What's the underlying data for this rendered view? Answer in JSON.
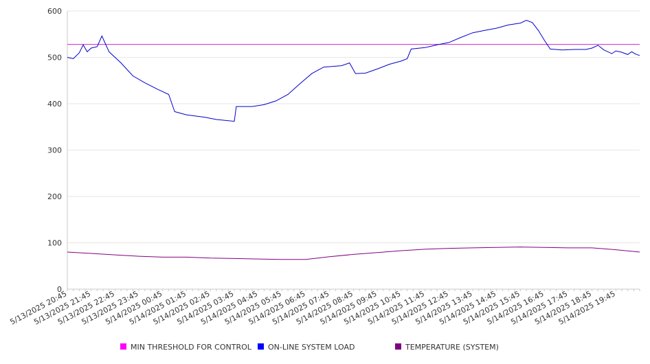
{
  "chart_data": {
    "type": "line",
    "title": "",
    "xlabel": "",
    "ylabel": "",
    "ylim": [
      0,
      600
    ],
    "yticks": [
      0,
      100,
      200,
      300,
      400,
      500,
      600
    ],
    "x_start": "5/13/2025 20:45",
    "x_end": "5/14/2025 20:45",
    "grid": "horizontal",
    "legend_position": "bottom",
    "x_tick_labels": [
      "5/13/2025 20:45",
      "5/13/2025 21:45",
      "5/13/2025 22:45",
      "5/13/2025 23:45",
      "5/14/2025 00:45",
      "5/14/2025 01:45",
      "5/14/2025 02:45",
      "5/14/2025 03:45",
      "5/14/2025 04:45",
      "5/14/2025 05:45",
      "5/14/2025 06:45",
      "5/14/2025 07:45",
      "5/14/2025 08:45",
      "5/14/2025 09:45",
      "5/14/2025 10:45",
      "5/14/2025 11:45",
      "5/14/2025 12:45",
      "5/14/2025 13:45",
      "5/14/2025 14:45",
      "5/14/2025 15:45",
      "5/14/2025 16:45",
      "5/14/2025 17:45",
      "5/14/2025 18:45",
      "5/14/2025 19:45"
    ],
    "series": [
      {
        "name": "MIN THRESHOLD FOR CONTROL",
        "color": "#cc22cc",
        "points": [
          [
            "5/13/2025 20:45",
            528
          ],
          [
            "5/14/2025 20:45",
            528
          ]
        ]
      },
      {
        "name": "ON-LINE SYSTEM LOAD",
        "color": "#0000cc",
        "points": [
          [
            "5/13/2025 20:45",
            500
          ],
          [
            "5/13/2025 21:00",
            497
          ],
          [
            "5/13/2025 21:15",
            510
          ],
          [
            "5/13/2025 21:25",
            527
          ],
          [
            "5/13/2025 21:35",
            512
          ],
          [
            "5/13/2025 21:45",
            520
          ],
          [
            "5/13/2025 22:00",
            523
          ],
          [
            "5/13/2025 22:12",
            546
          ],
          [
            "5/13/2025 22:30",
            512
          ],
          [
            "5/13/2025 23:00",
            488
          ],
          [
            "5/13/2025 23:30",
            460
          ],
          [
            "5/14/2025 00:00",
            445
          ],
          [
            "5/14/2025 00:30",
            432
          ],
          [
            "5/14/2025 01:00",
            420
          ],
          [
            "5/14/2025 01:15",
            383
          ],
          [
            "5/14/2025 01:45",
            376
          ],
          [
            "5/14/2025 02:30",
            371
          ],
          [
            "5/14/2025 03:00",
            366
          ],
          [
            "5/14/2025 03:45",
            362
          ],
          [
            "5/14/2025 03:50",
            394
          ],
          [
            "5/14/2025 04:30",
            394
          ],
          [
            "5/14/2025 05:00",
            398
          ],
          [
            "5/14/2025 05:30",
            406
          ],
          [
            "5/14/2025 06:00",
            420
          ],
          [
            "5/14/2025 06:30",
            443
          ],
          [
            "5/14/2025 07:00",
            465
          ],
          [
            "5/14/2025 07:30",
            479
          ],
          [
            "5/14/2025 08:15",
            482
          ],
          [
            "5/14/2025 08:35",
            488
          ],
          [
            "5/14/2025 08:50",
            465
          ],
          [
            "5/14/2025 09:15",
            466
          ],
          [
            "5/14/2025 09:45",
            475
          ],
          [
            "5/14/2025 10:15",
            485
          ],
          [
            "5/14/2025 10:45",
            492
          ],
          [
            "5/14/2025 11:00",
            497
          ],
          [
            "5/14/2025 11:10",
            518
          ],
          [
            "5/14/2025 11:45",
            521
          ],
          [
            "5/14/2025 12:15",
            527
          ],
          [
            "5/14/2025 12:45",
            532
          ],
          [
            "5/14/2025 13:15",
            543
          ],
          [
            "5/14/2025 13:45",
            553
          ],
          [
            "5/14/2025 14:15",
            558
          ],
          [
            "5/14/2025 14:45",
            563
          ],
          [
            "5/14/2025 15:15",
            570
          ],
          [
            "5/14/2025 15:45",
            574
          ],
          [
            "5/14/2025 16:00",
            580
          ],
          [
            "5/14/2025 16:15",
            575
          ],
          [
            "5/14/2025 16:30",
            558
          ],
          [
            "5/14/2025 16:45",
            537
          ],
          [
            "5/14/2025 17:00",
            518
          ],
          [
            "5/14/2025 17:30",
            516
          ],
          [
            "5/14/2025 18:00",
            517
          ],
          [
            "5/14/2025 18:30",
            517
          ],
          [
            "5/14/2025 18:45",
            520
          ],
          [
            "5/14/2025 19:00",
            526
          ],
          [
            "5/14/2025 19:15",
            516
          ],
          [
            "5/14/2025 19:35",
            508
          ],
          [
            "5/14/2025 19:45",
            514
          ],
          [
            "5/14/2025 20:00",
            511
          ],
          [
            "5/14/2025 20:15",
            506
          ],
          [
            "5/14/2025 20:25",
            512
          ],
          [
            "5/14/2025 20:35",
            507
          ],
          [
            "5/14/2025 20:45",
            504
          ]
        ]
      },
      {
        "name": "TEMPERATURE (SYSTEM)",
        "color": "#800080",
        "points": [
          [
            "5/13/2025 20:45",
            80
          ],
          [
            "5/13/2025 21:45",
            77
          ],
          [
            "5/13/2025 22:45",
            74
          ],
          [
            "5/13/2025 23:45",
            71
          ],
          [
            "5/14/2025 00:45",
            69
          ],
          [
            "5/14/2025 01:45",
            69
          ],
          [
            "5/14/2025 02:45",
            67
          ],
          [
            "5/14/2025 03:45",
            66
          ],
          [
            "5/14/2025 04:45",
            65
          ],
          [
            "5/14/2025 05:45",
            64
          ],
          [
            "5/14/2025 06:45",
            64
          ],
          [
            "5/14/2025 07:45",
            70
          ],
          [
            "5/14/2025 08:45",
            75
          ],
          [
            "5/14/2025 09:45",
            79
          ],
          [
            "5/14/2025 10:45",
            83
          ],
          [
            "5/14/2025 11:45",
            86
          ],
          [
            "5/14/2025 12:45",
            88
          ],
          [
            "5/14/2025 13:45",
            89
          ],
          [
            "5/14/2025 14:45",
            90
          ],
          [
            "5/14/2025 15:45",
            91
          ],
          [
            "5/14/2025 16:45",
            90
          ],
          [
            "5/14/2025 17:45",
            89
          ],
          [
            "5/14/2025 18:45",
            89
          ],
          [
            "5/14/2025 19:45",
            85
          ],
          [
            "5/14/2025 20:45",
            80
          ]
        ]
      }
    ]
  }
}
